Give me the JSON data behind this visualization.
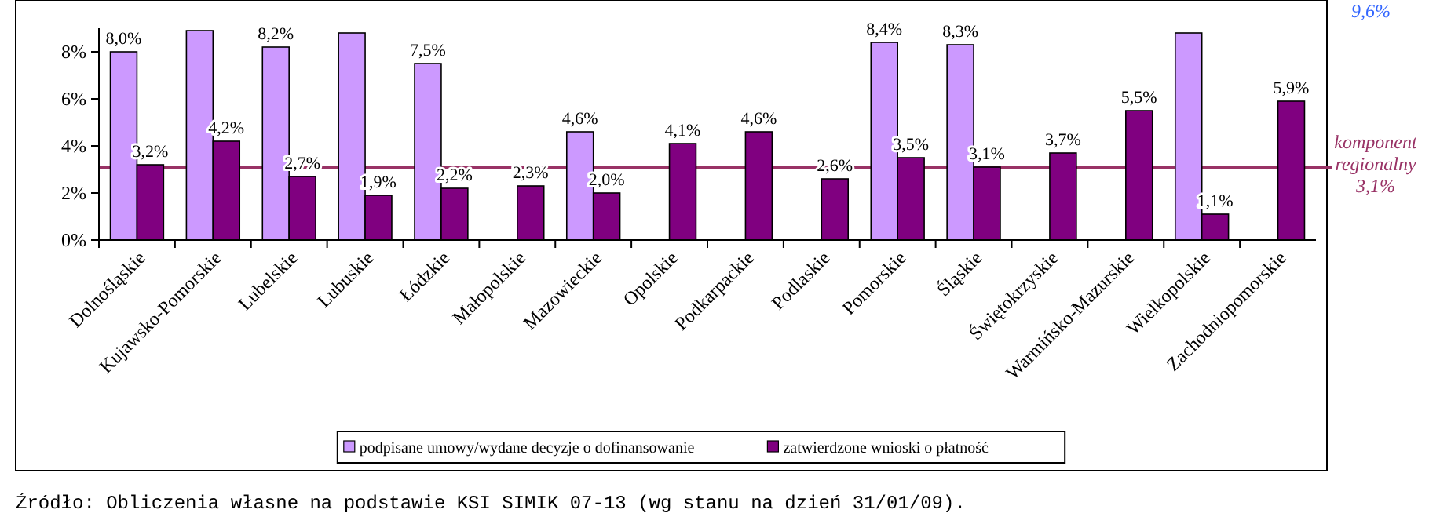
{
  "chart_data": {
    "type": "bar",
    "categories": [
      "Dolnośląskie",
      "Kujawsko-Pomorskie",
      "Lubelskie",
      "Lubuskie",
      "Łódzkie",
      "Małopolskie",
      "Mazowieckie",
      "Opolskie",
      "Podkarpackie",
      "Podlaskie",
      "Pomorskie",
      "Śląskie",
      "Świętokrzyskie",
      "Warmińsko-Mazurskie",
      "Wielkopolskie",
      "Zachodniopomorskie"
    ],
    "series": [
      {
        "name": "podpisane umowy/wydane decyzje o dofinansowanie",
        "color": "#cc99ff",
        "values": [
          8.0,
          8.9,
          8.2,
          8.8,
          7.5,
          null,
          4.6,
          null,
          null,
          null,
          8.4,
          8.3,
          null,
          null,
          8.8,
          null
        ],
        "value_labels": [
          "8,0%",
          null,
          "8,2%",
          null,
          "7,5%",
          null,
          "4,6%",
          null,
          null,
          null,
          "8,4%",
          "8,3%",
          null,
          null,
          null,
          null
        ]
      },
      {
        "name": "zatwierdzone wnioski o płatność",
        "color": "#800080",
        "values": [
          3.2,
          4.2,
          2.7,
          1.9,
          2.2,
          2.3,
          2.0,
          4.1,
          4.6,
          2.6,
          3.5,
          3.1,
          3.7,
          5.5,
          1.1,
          5.9
        ],
        "value_labels": [
          "3,2%",
          "4,2%",
          "2,7%",
          "1,9%",
          "2,2%",
          "2,3%",
          "2,0%",
          "4,1%",
          "4,6%",
          "2,6%",
          "3,5%",
          "3,1%",
          "3,7%",
          "5,5%",
          "1,1%",
          "5,9%"
        ]
      }
    ],
    "ylim": [
      0,
      9
    ],
    "yticks": [
      {
        "value": 0,
        "label": "0%"
      },
      {
        "value": 2,
        "label": "2%"
      },
      {
        "value": 4,
        "label": "4%"
      },
      {
        "value": 6,
        "label": "6%"
      },
      {
        "value": 8,
        "label": "8%"
      }
    ],
    "ref_lines": [
      {
        "axis": "y",
        "value": 3.1,
        "label": "komponent regionalny 3,1%",
        "color": "#993366"
      }
    ],
    "legend": "bottom",
    "grid": false,
    "annotations": [
      "9,6%",
      "Źródło: Obliczenia własne na podstawie KSI SIMIK 07-13 (wg stanu na dzień 31/01/09)."
    ]
  }
}
